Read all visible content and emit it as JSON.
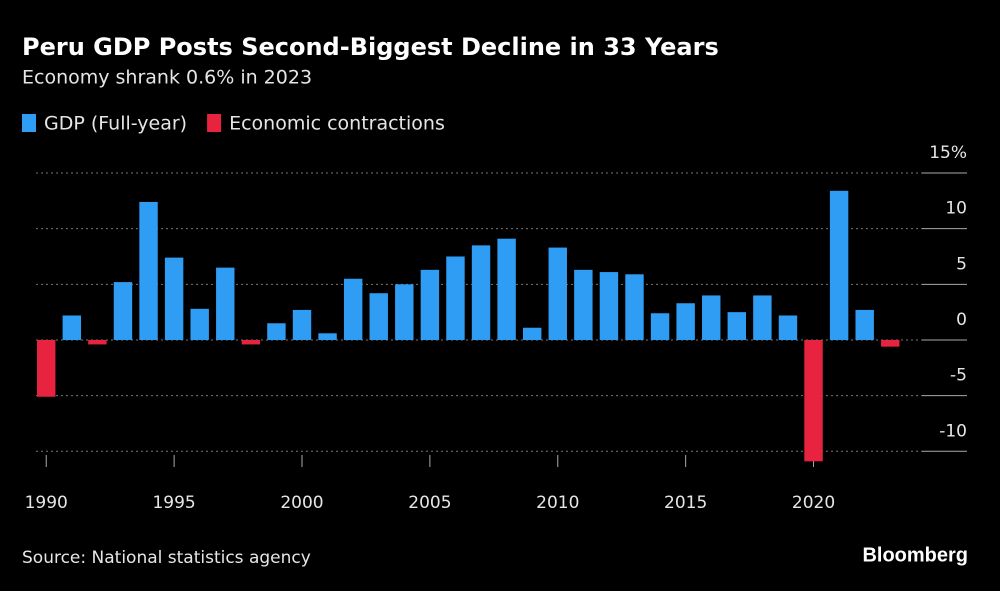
{
  "chart_data": {
    "type": "bar",
    "title": "Peru GDP Posts Second-Biggest Decline in 33 Years",
    "subtitle": "Economy shrank 0.6% in 2023",
    "source": "Source: National statistics agency",
    "logo": "Bloomberg",
    "x": [
      1990,
      1991,
      1992,
      1993,
      1994,
      1995,
      1996,
      1997,
      1998,
      1999,
      2000,
      2001,
      2002,
      2003,
      2004,
      2005,
      2006,
      2007,
      2008,
      2009,
      2010,
      2011,
      2012,
      2013,
      2014,
      2015,
      2016,
      2017,
      2018,
      2019,
      2020,
      2021,
      2022,
      2023
    ],
    "series": [
      {
        "name": "GDP (Full-year)",
        "color": "#2f9df4",
        "values": [
          null,
          2.2,
          null,
          5.2,
          12.4,
          7.4,
          2.8,
          6.5,
          null,
          1.5,
          2.7,
          0.6,
          5.5,
          4.2,
          5.0,
          6.3,
          7.5,
          8.5,
          9.1,
          1.1,
          8.3,
          6.3,
          6.1,
          5.9,
          2.4,
          3.3,
          4.0,
          2.5,
          4.0,
          2.2,
          null,
          13.4,
          2.7,
          null
        ]
      },
      {
        "name": "Economic contractions",
        "color": "#e8233f",
        "values": [
          -5.1,
          null,
          -0.4,
          null,
          null,
          null,
          null,
          null,
          -0.4,
          null,
          null,
          null,
          null,
          null,
          null,
          null,
          null,
          null,
          null,
          null,
          null,
          null,
          null,
          null,
          null,
          null,
          null,
          null,
          null,
          null,
          -10.9,
          null,
          null,
          -0.6
        ]
      }
    ],
    "xlim": [
      1989.6,
      2026
    ],
    "xticks": [
      1990,
      1995,
      2000,
      2005,
      2010,
      2015,
      2020
    ],
    "ylim": [
      -11.5,
      15
    ],
    "yticks": [
      {
        "value": 15,
        "label": "15%"
      },
      10,
      5,
      0,
      -5,
      -10
    ],
    "grid": true
  }
}
